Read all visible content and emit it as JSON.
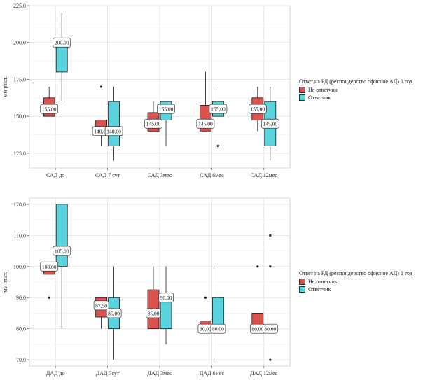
{
  "legend": {
    "title": "Ответ на РД (респондерство офисное АД) 1 год",
    "items": [
      {
        "label": "Не ответчик",
        "color": "#D9534F"
      },
      {
        "label": "Ответчик",
        "color": "#5BD3DC"
      }
    ]
  },
  "chart_data": [
    {
      "type": "box",
      "ylabel": "мм рт.ст.",
      "ylim": [
        115,
        225
      ],
      "yticks": [
        125,
        150,
        175,
        200,
        225
      ],
      "ytick_labels": [
        "125,0",
        "150,0",
        "175,0",
        "200,0",
        "225,0"
      ],
      "categories": [
        "САД до",
        "САД 7 сут",
        "САД 3мес",
        "САД 6мес",
        "САД 12мес"
      ],
      "series": [
        {
          "name": "Не ответчик",
          "color": "#D9534F",
          "boxes": [
            {
              "q1": 150,
              "median": 155,
              "q3": 162.5,
              "whisker_low": 150,
              "whisker_high": 170,
              "outliers": [],
              "label": "155,00"
            },
            {
              "q1": 140,
              "median": 140,
              "q3": 147.5,
              "whisker_low": 130,
              "whisker_high": 147.5,
              "outliers": [
                170
              ],
              "label": "140,00"
            },
            {
              "q1": 140,
              "median": 145,
              "q3": 152.5,
              "whisker_low": 140,
              "whisker_high": 160,
              "outliers": [],
              "label": "145,00"
            },
            {
              "q1": 140,
              "median": 145,
              "q3": 157.5,
              "whisker_low": 140,
              "whisker_high": 180,
              "outliers": [],
              "label": "145,00"
            },
            {
              "q1": 147.5,
              "median": 155,
              "q3": 162.5,
              "whisker_low": 140,
              "whisker_high": 170,
              "outliers": [],
              "label": "155,00"
            }
          ]
        },
        {
          "name": "Ответчик",
          "color": "#5BD3DC",
          "boxes": [
            {
              "q1": 180,
              "median": 200,
              "q3": 200,
              "whisker_low": 160,
              "whisker_high": 220,
              "outliers": [],
              "label": "200,00"
            },
            {
              "q1": 130,
              "median": 140,
              "q3": 160,
              "whisker_low": 120,
              "whisker_high": 170,
              "outliers": [],
              "label": "140,00"
            },
            {
              "q1": 147.5,
              "median": 155,
              "q3": 160,
              "whisker_low": 130,
              "whisker_high": 160,
              "outliers": [],
              "label": "155,00"
            },
            {
              "q1": 150,
              "median": 155,
              "q3": 160,
              "whisker_low": 150,
              "whisker_high": 170,
              "outliers": [
                130
              ],
              "label": "155,00"
            },
            {
              "q1": 130,
              "median": 145,
              "q3": 160,
              "whisker_low": 120,
              "whisker_high": 170,
              "outliers": [],
              "label": "145,00"
            }
          ]
        }
      ]
    },
    {
      "type": "box",
      "ylabel": "мм рт.ст.",
      "ylim": [
        68,
        122
      ],
      "yticks": [
        70,
        80,
        90,
        100,
        110,
        120
      ],
      "ytick_labels": [
        "70,0",
        "80,0",
        "90,0",
        "100,0",
        "110,0",
        "120,0"
      ],
      "categories": [
        "ДАД до",
        "ДАД 7сут",
        "ДАД 3мес",
        "ДАД 6мес",
        "ДАД 12мес"
      ],
      "series": [
        {
          "name": "Не ответчик",
          "color": "#D9534F",
          "boxes": [
            {
              "q1": 97.5,
              "median": 100,
              "q3": 100,
              "whisker_low": 97.5,
              "whisker_high": 100,
              "outliers": [
                90
              ],
              "label": "100,00"
            },
            {
              "q1": 83.75,
              "median": 87.5,
              "q3": 90,
              "whisker_low": 80,
              "whisker_high": 90,
              "outliers": [],
              "label": "87,50"
            },
            {
              "q1": 80,
              "median": 85,
              "q3": 92.5,
              "whisker_low": 80,
              "whisker_high": 100,
              "outliers": [],
              "label": "85,00"
            },
            {
              "q1": 80,
              "median": 80,
              "q3": 82.5,
              "whisker_low": 80,
              "whisker_high": 82.5,
              "outliers": [
                90
              ],
              "label": "80,00"
            },
            {
              "q1": 80,
              "median": 80,
              "q3": 85,
              "whisker_low": 80,
              "whisker_high": 85,
              "outliers": [
                100
              ],
              "label": "80,00"
            }
          ]
        },
        {
          "name": "Ответчик",
          "color": "#5BD3DC",
          "boxes": [
            {
              "q1": 100,
              "median": 105,
              "q3": 120,
              "whisker_low": 80,
              "whisker_high": 120,
              "outliers": [],
              "label": "105,00"
            },
            {
              "q1": 80,
              "median": 85,
              "q3": 90,
              "whisker_low": 70,
              "whisker_high": 100,
              "outliers": [],
              "label": "85,00"
            },
            {
              "q1": 80,
              "median": 90,
              "q3": 90,
              "whisker_low": 75,
              "whisker_high": 100,
              "outliers": [],
              "label": "90,00"
            },
            {
              "q1": 80,
              "median": 80,
              "q3": 90,
              "whisker_low": 70,
              "whisker_high": 100,
              "outliers": [],
              "label": "80,00"
            },
            {
              "q1": 80,
              "median": 80,
              "q3": 80,
              "whisker_low": 80,
              "whisker_high": 80,
              "outliers": [
                70,
                100,
                110
              ],
              "label": "80,00"
            }
          ]
        }
      ]
    }
  ]
}
